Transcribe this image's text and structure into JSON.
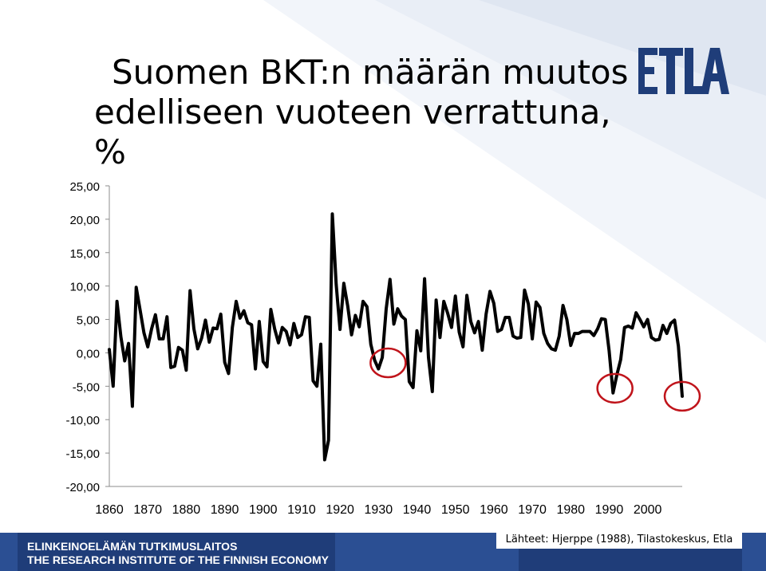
{
  "title": {
    "line1": "Suomen BKT:n määrän muutos",
    "line2": "edelliseen vuoteen verrattuna, %"
  },
  "logo": {
    "text": "ETLA",
    "color": "#1f3d79"
  },
  "footer": {
    "line1": "ELINKEINOELÄMÄN TUTKIMUSLAITOS",
    "line2": "THE RESEARCH INSTITUTE OF THE FINNISH ECONOMY",
    "sources": "Lähteet: Hjerppe (1988), Tilastokeskus, Etla",
    "color": "#1f3d79"
  },
  "chart_data": {
    "type": "line",
    "title": "",
    "xlabel": "",
    "ylabel": "",
    "xlim": [
      1860,
      2009
    ],
    "ylim": [
      -20,
      25
    ],
    "y_ticks": [
      25,
      20,
      15,
      10,
      5,
      0,
      -5,
      -10,
      -15,
      -20
    ],
    "y_tick_labels": [
      "25,00",
      "20,00",
      "15,00",
      "10,00",
      "5,00",
      "0,00",
      "-5,00",
      "-10,00",
      "-15,00",
      "-20,00"
    ],
    "x_ticks": [
      1860,
      1870,
      1880,
      1890,
      1900,
      1910,
      1920,
      1930,
      1940,
      1950,
      1960,
      1970,
      1980,
      1990,
      2000
    ],
    "x_tick_labels": [
      "1860",
      "1870",
      "1880",
      "1890",
      "1900",
      "1910",
      "1920",
      "1930",
      "1940",
      "1950",
      "1960",
      "1970",
      "1980",
      "1990",
      "2000"
    ],
    "grid": false,
    "line_color": "#000000",
    "highlight_color": "#c0141b",
    "highlights": [
      {
        "x": 1932.5,
        "y": -1.5
      },
      {
        "x": 1991.5,
        "y": -5.3
      },
      {
        "x": 2009,
        "y": -6.5
      }
    ],
    "series": [
      {
        "x": [
          1860,
          1861,
          1862,
          1863,
          1864,
          1865,
          1866,
          1867,
          1868,
          1869,
          1870,
          1871,
          1872,
          1873,
          1874,
          1875,
          1876,
          1877,
          1878,
          1879,
          1880,
          1881,
          1882,
          1883,
          1884,
          1885,
          1886,
          1887,
          1888,
          1889,
          1890,
          1891,
          1892,
          1893,
          1894,
          1895,
          1896,
          1897,
          1898,
          1899,
          1900,
          1901,
          1902,
          1903,
          1904,
          1905,
          1906,
          1907,
          1908,
          1909,
          1910,
          1911,
          1912,
          1913,
          1914,
          1915,
          1916,
          1917,
          1918,
          1919,
          1920,
          1921,
          1922,
          1923,
          1924,
          1925,
          1926,
          1927,
          1928,
          1929,
          1930,
          1931,
          1932,
          1933,
          1934,
          1935,
          1936,
          1937,
          1938,
          1939,
          1940,
          1941,
          1942,
          1943,
          1944,
          1945,
          1946,
          1947,
          1948,
          1949,
          1950,
          1951,
          1952,
          1953,
          1954,
          1955,
          1956,
          1957,
          1958,
          1959,
          1960,
          1961,
          1962,
          1963,
          1964,
          1965,
          1966,
          1967,
          1968,
          1969,
          1970,
          1971,
          1972,
          1973,
          1974,
          1975,
          1976,
          1977,
          1978,
          1979,
          1980,
          1981,
          1982,
          1983,
          1984,
          1985,
          1986,
          1987,
          1988,
          1989,
          1990,
          1991,
          1992,
          1993,
          1994,
          1995,
          1996,
          1997,
          1998,
          1999,
          2000,
          2001,
          2002,
          2003,
          2004,
          2005,
          2006,
          2007,
          2008,
          2009
        ],
        "values": [
          0.5,
          -5.0,
          7.7,
          2.4,
          -1.2,
          1.4,
          -8.0,
          9.8,
          6.4,
          3.0,
          0.9,
          3.6,
          5.7,
          2.1,
          2.1,
          5.4,
          -2.2,
          -2.0,
          0.8,
          0.4,
          -2.6,
          9.3,
          3.6,
          0.6,
          2.2,
          4.9,
          1.6,
          3.7,
          3.6,
          5.8,
          -1.4,
          -3.1,
          3.8,
          7.7,
          5.2,
          6.3,
          4.5,
          4.2,
          -2.4,
          4.7,
          -1.3,
          -2.1,
          6.5,
          3.6,
          1.5,
          3.8,
          3.2,
          1.2,
          4.4,
          2.3,
          2.7,
          5.4,
          5.3,
          -4.2,
          -5.0,
          1.3,
          -16.0,
          -13.1,
          20.8,
          10.3,
          3.5,
          10.4,
          7.0,
          2.7,
          5.6,
          3.9,
          7.7,
          6.9,
          1.3,
          -1.1,
          -2.4,
          -0.7,
          6.6,
          11.0,
          4.3,
          6.6,
          5.5,
          5.0,
          -4.3,
          -5.2,
          3.3,
          0.3,
          11.1,
          -0.7,
          -5.8,
          7.9,
          2.3,
          7.7,
          5.9,
          3.8,
          8.5,
          3.1,
          0.9,
          8.6,
          4.7,
          3.0,
          4.7,
          0.4,
          5.8,
          9.2,
          7.4,
          3.2,
          3.5,
          5.3,
          5.3,
          2.5,
          2.2,
          2.3,
          9.4,
          7.3,
          2.1,
          7.6,
          6.8,
          2.9,
          1.4,
          0.6,
          0.4,
          2.5,
          7.1,
          5.0,
          1.1,
          2.9,
          2.9,
          3.2,
          3.2,
          3.2,
          2.6,
          3.6,
          5.1,
          5.0,
          0.3,
          -6.0,
          -3.3,
          -1.0,
          3.8,
          4.0,
          3.7,
          6.0,
          5.0,
          3.9,
          5.0,
          2.3,
          1.9,
          2.0,
          4.1,
          2.9,
          4.4,
          4.9,
          1.0,
          -6.5
        ]
      }
    ]
  }
}
